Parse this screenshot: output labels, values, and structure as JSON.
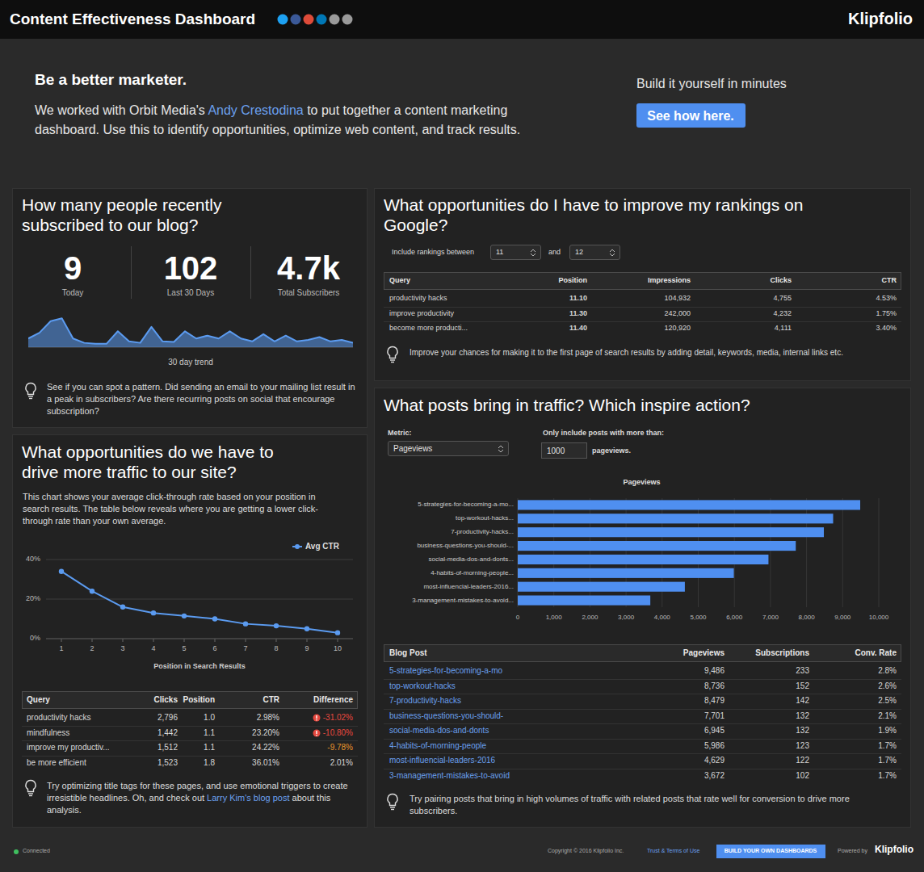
{
  "header": {
    "title": "Content Effectiveness Dashboard",
    "brand": "Klipfolio"
  },
  "intro": {
    "heading": "Be a better marketer.",
    "text_before": "We worked with Orbit Media's ",
    "link": "Andy Crestodina",
    "text_after": " to put together a content marketing dashboard. Use this to identify opportunities, optimize web content, and track results.",
    "cta_text": "Build it yourself in minutes",
    "cta_button": "See how here."
  },
  "subscribers": {
    "title": "How many people recently subscribed to our blog?",
    "stats": [
      {
        "value": "9",
        "label": "Today"
      },
      {
        "value": "102",
        "label": "Last 30 Days"
      },
      {
        "value": "4.7k",
        "label": "Total Subscribers"
      }
    ],
    "tip": "See if you can spot a pattern. Did sending an email to your mailing list result in a peak in subscribers? Are there recurring posts on social that encourage subscription?"
  },
  "rankings": {
    "title": "What opportunities do I have to improve my rankings on Google?",
    "filter": {
      "prefix": "Include rankings between",
      "from": "11",
      "joiner": "and",
      "to": "12"
    },
    "table": {
      "columns": [
        "Query",
        "Position",
        "Impressions",
        "Clicks",
        "CTR"
      ],
      "rows": [
        [
          "productivity hacks",
          "11.10",
          "104,932",
          "4,755",
          "4.53%"
        ],
        [
          "improve productivity",
          "11.30",
          "242,000",
          "4,232",
          "1.75%"
        ],
        [
          "become more producti...",
          "11.40",
          "120,920",
          "4,111",
          "3.40%"
        ]
      ]
    },
    "tip": "Improve your chances for making it to the first page of search results by adding detail, keywords, media, internal links etc."
  },
  "traffic": {
    "title": "What opportunities do we have to drive more traffic to our site?",
    "description": "This chart shows your average click-through rate based on your position in search results. The table below reveals where you are getting a lower click-through rate than your own average.",
    "table": {
      "columns": [
        "Query",
        "Clicks",
        "Position",
        "CTR",
        "Difference"
      ],
      "rows": [
        [
          "productivity hacks",
          "2,796",
          "1.0",
          "2.98%",
          "-31.02%"
        ],
        [
          "mindfulness",
          "1,442",
          "1.1",
          "23.20%",
          "-10.80%"
        ],
        [
          "improve my productiv...",
          "1,512",
          "1.1",
          "24.22%",
          "-9.78%"
        ],
        [
          "be more efficient",
          "1,523",
          "1.8",
          "36.01%",
          "2.01%"
        ]
      ],
      "colors": [
        "#e5483f",
        "#e5483f",
        "#e8952c",
        "#d8d8d8"
      ],
      "flags": [
        true,
        true,
        false,
        false
      ]
    },
    "tip": {
      "before": "Try optimizing title tags for these pages, and use emotional triggers to create irresistible headlines. Oh, and check out ",
      "link": "Larry Kim's blog post",
      "after": " about this analysis."
    }
  },
  "posts": {
    "title": "What posts bring in traffic? Which inspire action?",
    "metric_label": "Metric:",
    "metric": "Pageviews",
    "threshold_label": "Only include posts with more than:",
    "threshold": "1000",
    "threshold_unit": "pageviews.",
    "table": {
      "columns": [
        "Blog Post",
        "Pageviews",
        "Subscriptions",
        "Conv. Rate"
      ],
      "rows": [
        [
          "5-strategies-for-becoming-a-mo",
          "9,486",
          "233",
          "2.8%"
        ],
        [
          "top-workout-hacks",
          "8,736",
          "152",
          "2.6%"
        ],
        [
          "7-productivity-hacks",
          "8,479",
          "142",
          "2.5%"
        ],
        [
          "business-questions-you-should-",
          "7,701",
          "132",
          "2.1%"
        ],
        [
          "social-media-dos-and-donts",
          "6,945",
          "132",
          "1.9%"
        ],
        [
          "4-habits-of-morning-people",
          "5,986",
          "123",
          "1.7%"
        ],
        [
          "most-influencial-leaders-2016",
          "4,629",
          "122",
          "1.7%"
        ],
        [
          "3-management-mistakes-to-avoid",
          "3,672",
          "102",
          "1.7%"
        ]
      ]
    },
    "tip": "Try pairing posts that bring in high volumes of traffic with related posts that rate well for conversion to drive more subscribers."
  },
  "footer": {
    "status": "Connected",
    "copyright": "Copyright © 2016 Klipfolio Inc.",
    "terms": "Trust & Terms of Use",
    "button": "BUILD YOUR OWN DASHBOARDS",
    "powered_by": "Powered by",
    "brand": "Klipfolio"
  },
  "chart_data": [
    {
      "type": "area",
      "xlabel": "30 day trend",
      "categories": [
        null,
        null,
        null,
        null,
        null,
        null,
        null,
        null,
        null,
        null,
        null,
        null,
        null,
        null,
        null,
        null,
        null,
        null,
        null,
        null,
        null,
        null,
        null,
        null,
        null,
        null,
        null,
        null,
        null,
        null
      ],
      "values": [
        3,
        5,
        9,
        10,
        3,
        1.5,
        1.2,
        1.2,
        5.5,
        2,
        1.5,
        7,
        2,
        1.8,
        5.5,
        3,
        4,
        3,
        5.5,
        3,
        2,
        4.5,
        2,
        4,
        2,
        2.5,
        3.5,
        2,
        2.5,
        1.5
      ],
      "ylim": [
        0,
        12
      ],
      "color": "#5b9bf0",
      "tick_labels": false
    },
    {
      "type": "line",
      "xlabel": "Position in Search Results",
      "x": [
        1,
        2,
        3,
        4,
        5,
        6,
        7,
        8,
        9,
        10
      ],
      "series": [
        {
          "name": "Avg CTR",
          "color": "#5b9bf0",
          "values": [
            34,
            24,
            16,
            13,
            11.5,
            10,
            7.5,
            6.5,
            5,
            3
          ]
        }
      ],
      "xlim": [
        0.5,
        10.5
      ],
      "xticks": [
        1,
        2,
        3,
        4,
        5,
        6,
        7,
        8,
        9,
        10
      ],
      "ylim": [
        0,
        40
      ],
      "yticks": [
        {
          "value": 0,
          "label": "0%"
        },
        {
          "value": 20,
          "label": "20%"
        },
        {
          "value": 40,
          "label": "40%"
        }
      ],
      "grid": true,
      "legend": "top-right",
      "marker": "circle"
    },
    {
      "type": "bar",
      "orientation": "horizontal",
      "title": "Pageviews",
      "categories": [
        "5-strategies-for-becoming-a-mo...",
        "top-workout-hacks...",
        "7-productivity-hacks...",
        "business-questions-you-should-...",
        "social-media-dos-and-donts...",
        "4-habits-of-morning-people...",
        "most-influencial-leaders-2016...",
        "3-management-mistakes-to-avoid..."
      ],
      "values": [
        9486,
        8736,
        8479,
        7701,
        6945,
        5986,
        4629,
        3672
      ],
      "color": "#4f8ff0",
      "xlim": [
        0,
        10000
      ],
      "xticks": [
        0,
        {
          "value": 1000,
          "label": "1,000"
        },
        {
          "value": 2000,
          "label": "2,000"
        },
        {
          "value": 3000,
          "label": "3,000"
        },
        {
          "value": 4000,
          "label": "4,000"
        },
        {
          "value": 5000,
          "label": "5,000"
        },
        {
          "value": 6000,
          "label": "6,000"
        },
        {
          "value": 7000,
          "label": "7,000"
        },
        {
          "value": 8000,
          "label": "8,000"
        },
        {
          "value": 9000,
          "label": "9,000"
        },
        {
          "value": 10000,
          "label": "10,000"
        }
      ],
      "grid": true
    }
  ]
}
